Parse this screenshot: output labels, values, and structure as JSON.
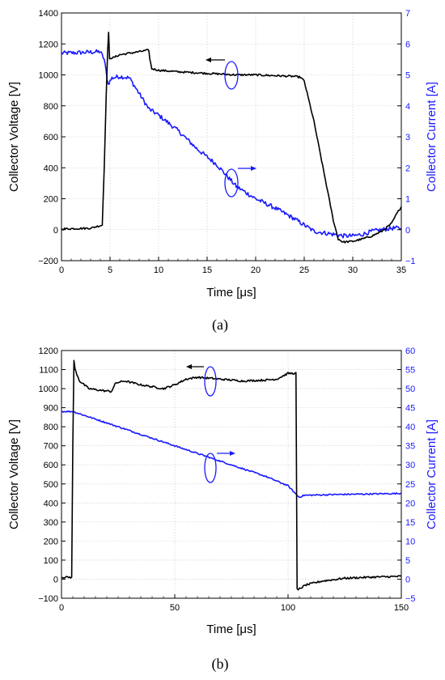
{
  "chart_data": [
    {
      "panel": "(a)",
      "type": "line",
      "xlabel": "Time [μs]",
      "ylabel_left": "Collector Voltage [V]",
      "ylabel_right": "Collector Current [A]",
      "xlim": [
        0,
        35
      ],
      "ylim_left": [
        -200,
        1400
      ],
      "ylim_right": [
        -1,
        7
      ],
      "xticks": [
        "0",
        "5",
        "10",
        "15",
        "20",
        "25",
        "30",
        "35"
      ],
      "yticks_left": [
        "−200",
        "0",
        "200",
        "400",
        "600",
        "800",
        "1000",
        "1200",
        "1400"
      ],
      "yticks_right": [
        "−1",
        "0",
        "1",
        "2",
        "3",
        "4",
        "5",
        "6",
        "7"
      ],
      "grid": true,
      "colors": {
        "voltage": "#000000",
        "current": "#1a1aff"
      },
      "series": [
        {
          "axis": "left",
          "x": [
            0,
            3.0,
            4.2,
            4.4,
            4.6,
            4.75,
            4.85,
            4.95,
            5.05,
            5.3,
            6.0,
            7.0,
            8.0,
            9.0,
            9.1,
            9.3,
            10,
            12,
            15,
            18,
            20,
            22,
            24,
            24.6,
            25.0,
            26,
            27,
            28,
            28.5,
            29,
            30,
            31,
            32,
            33,
            34,
            34.5,
            35
          ],
          "y": [
            5,
            10,
            30,
            400,
            850,
            1150,
            1270,
            1100,
            1110,
            1110,
            1130,
            1140,
            1150,
            1160,
            1100,
            1040,
            1030,
            1020,
            1010,
            1000,
            1000,
            995,
            990,
            985,
            960,
            700,
            380,
            60,
            -60,
            -80,
            -75,
            -60,
            -40,
            -10,
            40,
            100,
            150
          ]
        },
        {
          "axis": "right",
          "x": [
            0,
            2,
            4,
            4.4,
            4.8,
            5.2,
            6,
            7,
            8,
            9,
            10,
            12,
            14,
            16,
            18,
            20,
            22,
            24,
            25,
            26,
            27,
            28,
            29,
            30,
            31,
            32,
            33,
            34,
            35
          ],
          "y": [
            5.7,
            5.72,
            5.75,
            5.5,
            4.7,
            4.9,
            4.95,
            4.9,
            4.4,
            3.9,
            3.7,
            3.2,
            2.6,
            2.1,
            1.4,
            1.0,
            0.7,
            0.35,
            0.15,
            -0.05,
            -0.1,
            -0.15,
            -0.2,
            -0.2,
            -0.15,
            -0.05,
            0.0,
            0.05,
            0.05
          ]
        }
      ]
    },
    {
      "panel": "(b)",
      "type": "line",
      "xlabel": "Time [μs]",
      "ylabel_left": "Collector Voltage [V]",
      "ylabel_right": "Collector Current [A]",
      "xlim": [
        0,
        150
      ],
      "ylim_left": [
        -100,
        1200
      ],
      "ylim_right": [
        -5,
        60
      ],
      "xticks": [
        "0",
        "50",
        "100",
        "150"
      ],
      "yticks_left": [
        "−100",
        "0",
        "100",
        "200",
        "300",
        "400",
        "500",
        "600",
        "700",
        "800",
        "900",
        "1000",
        "1100",
        "1200"
      ],
      "yticks_right": [
        "−5",
        "0",
        "5",
        "10",
        "15",
        "20",
        "25",
        "30",
        "35",
        "40",
        "45",
        "50",
        "55",
        "60"
      ],
      "grid": true,
      "colors": {
        "voltage": "#000000",
        "current": "#1a1aff"
      },
      "series": [
        {
          "axis": "left",
          "x": [
            0,
            4.5,
            5.0,
            5.5,
            6,
            8,
            12,
            18,
            22,
            24,
            28,
            35,
            40,
            45,
            50,
            55,
            60,
            70,
            80,
            90,
            95,
            100,
            103.5,
            104,
            104.5,
            105,
            108,
            115,
            125,
            135,
            150
          ],
          "y": [
            10,
            10,
            700,
            1150,
            1100,
            1040,
            1000,
            990,
            985,
            1030,
            1040,
            1020,
            1010,
            1000,
            1020,
            1050,
            1060,
            1050,
            1040,
            1045,
            1050,
            1080,
            1080,
            -50,
            -60,
            -50,
            -30,
            -10,
            5,
            10,
            15
          ]
        },
        {
          "axis": "right",
          "x": [
            0,
            5,
            10,
            30,
            50,
            70,
            90,
            100,
            104,
            105,
            107,
            120,
            150
          ],
          "y": [
            44,
            44,
            43,
            39,
            35,
            31,
            27,
            24.5,
            22,
            21.5,
            22,
            22.2,
            22.5
          ]
        }
      ]
    }
  ]
}
